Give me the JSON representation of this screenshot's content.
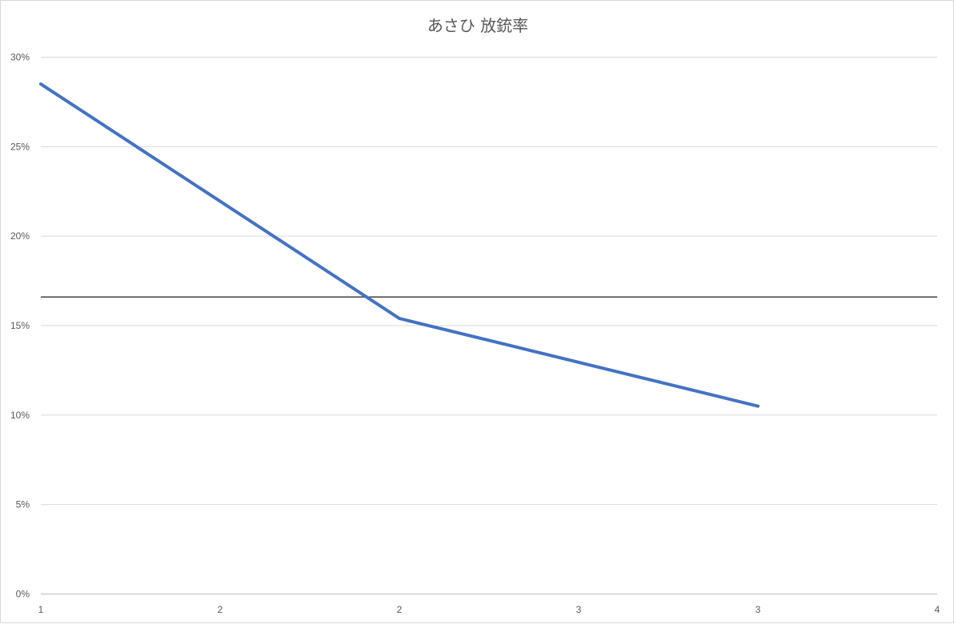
{
  "chart_data": {
    "type": "line",
    "title": "あさひ 放銃率",
    "xlabel": "",
    "ylabel": "",
    "x_tick_labels": [
      "1",
      "2",
      "2",
      "3",
      "3",
      "4"
    ],
    "y_tick_labels": [
      "0%",
      "5%",
      "10%",
      "15%",
      "20%",
      "25%",
      "30%"
    ],
    "ylim": [
      0,
      0.3
    ],
    "grid": true,
    "legend": "none",
    "series": [
      {
        "values": [
          0.285,
          0.154,
          0.105
        ],
        "color": "#4472c4"
      }
    ],
    "series_x_index": [
      0,
      2,
      4
    ],
    "reference_line": {
      "value": 0.166,
      "color": "#404040"
    },
    "colors": {
      "gridline": "#d9d9d9",
      "axis": "#bfbfbf",
      "text": "#595959"
    }
  }
}
